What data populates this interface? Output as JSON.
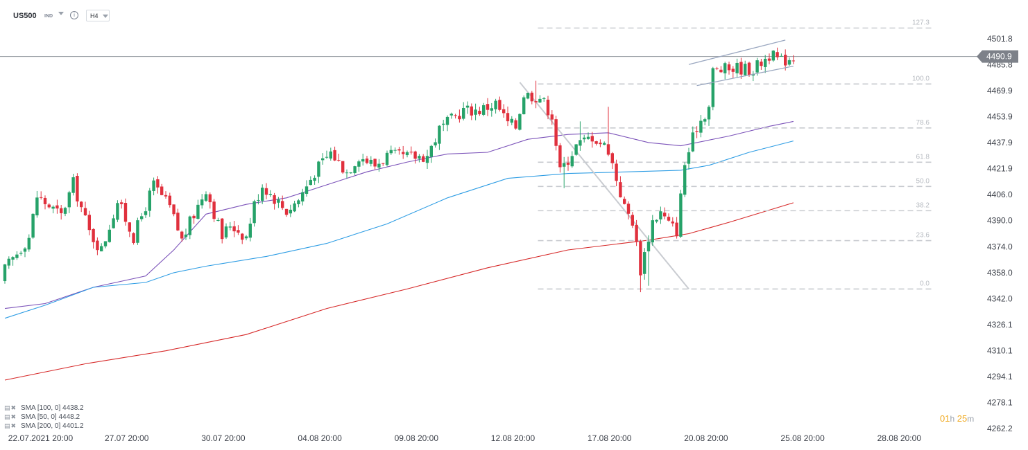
{
  "header": {
    "symbol": "US500",
    "market": "IND",
    "timeframe": "H4"
  },
  "legend": [
    {
      "label": "SMA  [100,  0]  4438.2",
      "color": "#2e9de4"
    },
    {
      "label": "SMA  [50,  0]  4448.2",
      "color": "#7b52b9"
    },
    {
      "label": "SMA  [200,  0]  4401.2",
      "color": "#d62828"
    }
  ],
  "timer": {
    "hours": "01",
    "h": "h",
    "minutes": "25",
    "m": "m"
  },
  "chart_data": {
    "type": "candlestick",
    "title": "",
    "price_axis": {
      "min": 4262.2,
      "max": 4501.8,
      "ticks": [
        4501.8,
        4485.8,
        4469.9,
        4453.9,
        4437.9,
        4421.9,
        4406.0,
        4390.0,
        4374.0,
        4358.0,
        4342.0,
        4326.1,
        4310.1,
        4294.1,
        4278.1,
        4262.2
      ]
    },
    "time_axis": {
      "labels": [
        "22.07.2021  20:00",
        "27.07  20:00",
        "30.07  20:00",
        "04.08  20:00",
        "09.08  20:00",
        "12.08  20:00",
        "17.08  20:00",
        "20.08  20:00",
        "25.08  20:00",
        "28.08  20:00"
      ],
      "label_bar_index": [
        1,
        25,
        49,
        73,
        97,
        121,
        145,
        169,
        193,
        217
      ]
    },
    "current_price": {
      "value": 4490.9,
      "label": "4490.9"
    },
    "bar_count": 193,
    "candles_sample": [
      {
        "date": "22.07.2021 20:00",
        "open": 4361,
        "high": 4371,
        "low": 4356,
        "close": 4368
      },
      {
        "date": "12.08 20:00",
        "open": 4460,
        "high": 4463,
        "low": 4450,
        "close": 4458
      },
      {
        "date": "18.08 12:00",
        "open": 4390,
        "high": 4394,
        "low": 4348,
        "close": 4355
      },
      {
        "date": "20.08 20:00",
        "open": 4462,
        "high": 4486,
        "low": 4460,
        "close": 4484
      },
      {
        "date": "25.08 20:00",
        "open": 4488,
        "high": 4494,
        "low": 4486,
        "close": 4491
      }
    ],
    "series": [
      {
        "name": "SMA [100, 0]",
        "color": "#2e9de4",
        "last": 4438.2
      },
      {
        "name": "SMA [50, 0]",
        "color": "#7b52b9",
        "last": 4448.2
      },
      {
        "name": "SMA [200, 0]",
        "color": "#d62828",
        "last": 4401.2
      }
    ],
    "fibonacci": {
      "high": 4474,
      "low": 4348,
      "levels": [
        {
          "label": "127.3",
          "value": 4508.4
        },
        {
          "label": "100.0",
          "value": 4474.0
        },
        {
          "label": "78.6",
          "value": 4447.0
        },
        {
          "label": "61.8",
          "value": 4425.9
        },
        {
          "label": "50.0",
          "value": 4411.0
        },
        {
          "label": "38.2",
          "value": 4396.1
        },
        {
          "label": "23.6",
          "value": 4377.7
        },
        {
          "label": "0.0",
          "value": 4348.0
        }
      ]
    },
    "channel": {
      "upper": [
        {
          "bar": 170,
          "price": 4486
        },
        {
          "bar": 194,
          "price": 4501
        }
      ],
      "lower": [
        {
          "bar": 172,
          "price": 4473
        },
        {
          "bar": 196,
          "price": 4485
        }
      ]
    },
    "trendline": [
      {
        "bar": 128,
        "price": 4475
      },
      {
        "bar": 170,
        "price": 4348
      }
    ],
    "colors": {
      "up": "#26a269",
      "down": "#e0303d",
      "grid": "#d4d7dc",
      "axis_text": "#3c4049"
    }
  }
}
